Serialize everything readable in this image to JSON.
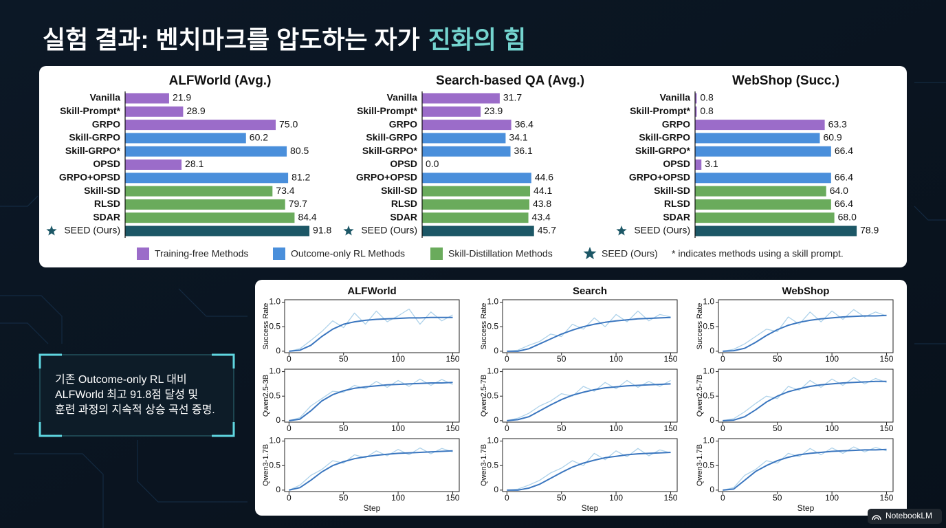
{
  "title": "실험 결과: 벤치마크를 압도하는 자가",
  "title_highlight": "진화의 힘",
  "legend": {
    "items": [
      {
        "label": "Training-free Methods",
        "color": "#9b6cc9"
      },
      {
        "label": "Outcome-only RL Methods",
        "color": "#4a8fdb"
      },
      {
        "label": "Skill-Distillation Methods",
        "color": "#6aab5c"
      },
      {
        "label": "SEED (Ours)",
        "color": "#1c5766"
      }
    ],
    "note": "* indicates methods using a skill prompt."
  },
  "callout": {
    "lines": [
      "기존 Outcome-only RL 대비",
      "ALFWorld 최고 91.8점 달성 및",
      "훈련 과정의 지속적 상승 곡선 증명."
    ]
  },
  "watermark": "NotebookLM",
  "chart_data": [
    {
      "type": "hbar",
      "title": "ALFWorld (Avg.)",
      "categories": [
        "Vanilla",
        "Skill-Prompt*",
        "GRPO",
        "Skill-GRPO",
        "Skill-GRPO*",
        "OPSD",
        "GRPO+OPSD",
        "Skill-SD",
        "RLSD",
        "SDAR",
        "SEED (Ours)"
      ],
      "values": [
        21.9,
        28.9,
        75,
        60.2,
        80.5,
        28.1,
        81.2,
        73.4,
        79.7,
        84.4,
        91.8
      ],
      "value_labels": [
        "21.9",
        "28.9",
        "75.0",
        "60.2",
        "80.5",
        "28.1",
        "81.2",
        "73.4",
        "79.7",
        "84.4",
        "91.8"
      ],
      "colors": [
        "#9b6cc9",
        "#9b6cc9",
        "#9b6cc9",
        "#4a8fdb",
        "#4a8fdb",
        "#9b6cc9",
        "#4a8fdb",
        "#6aab5c",
        "#6aab5c",
        "#6aab5c",
        "#1c5766"
      ],
      "xlim": [
        0,
        100
      ]
    },
    {
      "type": "hbar",
      "title": "Search-based QA (Avg.)",
      "categories": [
        "Vanilla",
        "Skill-Prompt*",
        "GRPO",
        "Skill-GRPO",
        "Skill-GRPO*",
        "OPSD",
        "GRPO+OPSD",
        "Skill-SD",
        "RLSD",
        "SDAR",
        "SEED (Ours)"
      ],
      "values": [
        31.7,
        23.9,
        36.4,
        34.1,
        36.1,
        0,
        44.6,
        44.1,
        43.8,
        43.4,
        45.7
      ],
      "value_labels": [
        "31.7",
        "23.9",
        "36.4",
        "34.1",
        "36.1",
        "0.0",
        "44.6",
        "44.1",
        "43.8",
        "43.4",
        "45.7"
      ],
      "colors": [
        "#9b6cc9",
        "#9b6cc9",
        "#9b6cc9",
        "#4a8fdb",
        "#4a8fdb",
        "#9b6cc9",
        "#4a8fdb",
        "#6aab5c",
        "#6aab5c",
        "#6aab5c",
        "#1c5766"
      ],
      "xlim": [
        0,
        82
      ]
    },
    {
      "type": "hbar",
      "title": "WebShop (Succ.)",
      "categories": [
        "Vanilla",
        "Skill-Prompt*",
        "GRPO",
        "Skill-GRPO",
        "Skill-GRPO*",
        "OPSD",
        "GRPO+OPSD",
        "Skill-SD",
        "RLSD",
        "SDAR",
        "SEED (Ours)"
      ],
      "values": [
        0.8,
        0.8,
        63.3,
        60.9,
        66.4,
        3.1,
        66.4,
        64,
        66.4,
        68,
        78.9
      ],
      "value_labels": [
        "0.8",
        "0.8",
        "63.3",
        "60.9",
        "66.4",
        "3.1",
        "66.4",
        "64.0",
        "66.4",
        "68.0",
        "78.9"
      ],
      "colors": [
        "#9b6cc9",
        "#9b6cc9",
        "#9b6cc9",
        "#4a8fdb",
        "#4a8fdb",
        "#9b6cc9",
        "#4a8fdb",
        "#6aab5c",
        "#6aab5c",
        "#6aab5c",
        "#1c5766"
      ],
      "xlim": [
        0,
        98
      ]
    },
    {
      "type": "line",
      "title": "ALFWorld",
      "ylabel": "Success Rate",
      "x": [
        0,
        10,
        20,
        30,
        40,
        50,
        60,
        70,
        80,
        90,
        100,
        110,
        120,
        130,
        140,
        150
      ],
      "series": [
        {
          "color": "#aed2ea",
          "values": [
            0,
            0.05,
            0.22,
            0.4,
            0.62,
            0.48,
            0.78,
            0.55,
            0.82,
            0.6,
            0.72,
            0.86,
            0.55,
            0.8,
            0.62,
            0.74
          ]
        },
        {
          "color": "#3a76bf",
          "values": [
            0,
            0.02,
            0.12,
            0.3,
            0.45,
            0.55,
            0.6,
            0.63,
            0.65,
            0.66,
            0.67,
            0.68,
            0.68,
            0.69,
            0.69,
            0.69
          ]
        }
      ],
      "xlim": [
        -4,
        156
      ],
      "ylim": [
        -0.03,
        1.05
      ],
      "xticks": [
        0,
        50,
        100,
        150
      ],
      "yticks": [
        0,
        0.5,
        {
          "value": 1,
          "label": "1.0"
        }
      ]
    },
    {
      "type": "line",
      "title": "Search",
      "ylabel": "Success Rate",
      "x": [
        0,
        10,
        20,
        30,
        40,
        50,
        60,
        70,
        80,
        90,
        100,
        110,
        120,
        130,
        140,
        150
      ],
      "series": [
        {
          "color": "#aed2ea",
          "values": [
            0,
            0.02,
            0.12,
            0.2,
            0.35,
            0.3,
            0.55,
            0.45,
            0.68,
            0.5,
            0.75,
            0.6,
            0.82,
            0.62,
            0.75,
            0.7
          ]
        },
        {
          "color": "#3a76bf",
          "values": [
            0,
            0,
            0.05,
            0.15,
            0.25,
            0.35,
            0.43,
            0.5,
            0.55,
            0.59,
            0.62,
            0.64,
            0.66,
            0.67,
            0.68,
            0.69
          ]
        }
      ],
      "xlim": [
        -4,
        156
      ],
      "ylim": [
        -0.03,
        1.05
      ],
      "xticks": [
        0,
        50,
        100,
        150
      ],
      "yticks": [
        0,
        0.5,
        {
          "value": 1,
          "label": "1.0"
        }
      ]
    },
    {
      "type": "line",
      "title": "WebShop",
      "ylabel": "Success Rate",
      "x": [
        0,
        10,
        20,
        30,
        40,
        50,
        60,
        70,
        80,
        90,
        100,
        110,
        120,
        130,
        140,
        150
      ],
      "series": [
        {
          "color": "#aed2ea",
          "values": [
            0,
            0.04,
            0.15,
            0.3,
            0.45,
            0.4,
            0.7,
            0.55,
            0.8,
            0.6,
            0.82,
            0.65,
            0.85,
            0.7,
            0.8,
            0.72
          ]
        },
        {
          "color": "#3a76bf",
          "values": [
            0,
            0.01,
            0.06,
            0.18,
            0.32,
            0.44,
            0.53,
            0.59,
            0.63,
            0.66,
            0.68,
            0.7,
            0.71,
            0.72,
            0.72,
            0.73
          ]
        }
      ],
      "xlim": [
        -4,
        156
      ],
      "ylim": [
        -0.03,
        1.05
      ],
      "xticks": [
        0,
        50,
        100,
        150
      ],
      "yticks": [
        0,
        0.5,
        {
          "value": 1,
          "label": "1.0"
        }
      ]
    },
    {
      "type": "line",
      "ylabel": "Qwen2.5-3B",
      "x": [
        0,
        10,
        20,
        30,
        40,
        50,
        60,
        70,
        80,
        90,
        100,
        110,
        120,
        130,
        140,
        150
      ],
      "series": [
        {
          "color": "#aed2ea",
          "values": [
            0,
            0.06,
            0.3,
            0.45,
            0.6,
            0.58,
            0.72,
            0.65,
            0.8,
            0.68,
            0.82,
            0.7,
            0.85,
            0.72,
            0.84,
            0.74
          ]
        },
        {
          "color": "#3a76bf",
          "values": [
            0,
            0.03,
            0.2,
            0.4,
            0.53,
            0.61,
            0.66,
            0.69,
            0.71,
            0.73,
            0.74,
            0.75,
            0.76,
            0.77,
            0.77,
            0.78
          ]
        }
      ],
      "xlim": [
        -4,
        156
      ],
      "ylim": [
        -0.03,
        1.05
      ],
      "xticks": [
        0,
        50,
        100,
        150
      ],
      "yticks": [
        0,
        0.5,
        {
          "value": 1,
          "label": "1.0"
        }
      ]
    },
    {
      "type": "line",
      "ylabel": "Qwen2.5-7B",
      "x": [
        0,
        10,
        20,
        30,
        40,
        50,
        60,
        70,
        80,
        90,
        100,
        110,
        120,
        130,
        140,
        150
      ],
      "series": [
        {
          "color": "#aed2ea",
          "values": [
            0,
            0.05,
            0.15,
            0.3,
            0.4,
            0.55,
            0.5,
            0.7,
            0.6,
            0.78,
            0.65,
            0.82,
            0.68,
            0.8,
            0.7,
            0.82
          ]
        },
        {
          "color": "#3a76bf",
          "values": [
            0,
            0.02,
            0.08,
            0.2,
            0.32,
            0.43,
            0.52,
            0.58,
            0.63,
            0.67,
            0.69,
            0.71,
            0.72,
            0.73,
            0.74,
            0.75
          ]
        }
      ],
      "xlim": [
        -4,
        156
      ],
      "ylim": [
        -0.03,
        1.05
      ],
      "xticks": [
        0,
        50,
        100,
        150
      ],
      "yticks": [
        0,
        0.5,
        {
          "value": 1,
          "label": "1.0"
        }
      ]
    },
    {
      "type": "line",
      "ylabel": "Qwen2.5-7B",
      "x": [
        0,
        10,
        20,
        30,
        40,
        50,
        60,
        70,
        80,
        90,
        100,
        110,
        120,
        130,
        140,
        150
      ],
      "series": [
        {
          "color": "#aed2ea",
          "values": [
            0,
            0.04,
            0.18,
            0.35,
            0.5,
            0.45,
            0.7,
            0.62,
            0.82,
            0.68,
            0.85,
            0.72,
            0.88,
            0.75,
            0.86,
            0.78
          ]
        },
        {
          "color": "#3a76bf",
          "values": [
            0,
            0.01,
            0.08,
            0.22,
            0.38,
            0.5,
            0.59,
            0.65,
            0.7,
            0.73,
            0.75,
            0.77,
            0.78,
            0.79,
            0.8,
            0.8
          ]
        }
      ],
      "xlim": [
        -4,
        156
      ],
      "ylim": [
        -0.03,
        1.05
      ],
      "xticks": [
        0,
        50,
        100,
        150
      ],
      "yticks": [
        0,
        0.5,
        {
          "value": 1,
          "label": "1.0"
        }
      ]
    },
    {
      "type": "line",
      "ylabel": "Qwen3-1.7B",
      "xlabel": "Step",
      "x": [
        0,
        10,
        20,
        30,
        40,
        50,
        60,
        70,
        80,
        90,
        100,
        110,
        120,
        130,
        140,
        150
      ],
      "series": [
        {
          "color": "#aed2ea",
          "values": [
            0,
            0.1,
            0.3,
            0.42,
            0.6,
            0.55,
            0.72,
            0.66,
            0.8,
            0.7,
            0.83,
            0.72,
            0.86,
            0.74,
            0.85,
            0.78
          ]
        },
        {
          "color": "#3a76bf",
          "values": [
            0,
            0.05,
            0.2,
            0.37,
            0.5,
            0.58,
            0.64,
            0.68,
            0.71,
            0.73,
            0.75,
            0.76,
            0.77,
            0.78,
            0.79,
            0.8
          ]
        }
      ],
      "xlim": [
        -4,
        156
      ],
      "ylim": [
        -0.03,
        1.05
      ],
      "xticks": [
        0,
        50,
        100,
        150
      ],
      "yticks": [
        0,
        0.5,
        {
          "value": 1,
          "label": "1.0"
        }
      ]
    },
    {
      "type": "line",
      "ylabel": "Qwen3-1.7B",
      "xlabel": "Step",
      "x": [
        0,
        10,
        20,
        30,
        40,
        50,
        60,
        70,
        80,
        90,
        100,
        110,
        120,
        130,
        140,
        150
      ],
      "series": [
        {
          "color": "#aed2ea",
          "values": [
            0,
            0.02,
            0.1,
            0.2,
            0.35,
            0.45,
            0.6,
            0.5,
            0.75,
            0.62,
            0.8,
            0.68,
            0.85,
            0.7,
            0.82,
            0.76
          ]
        },
        {
          "color": "#3a76bf",
          "values": [
            0,
            0,
            0.04,
            0.12,
            0.24,
            0.36,
            0.47,
            0.55,
            0.61,
            0.66,
            0.69,
            0.72,
            0.74,
            0.75,
            0.76,
            0.77
          ]
        }
      ],
      "xlim": [
        -4,
        156
      ],
      "ylim": [
        -0.03,
        1.05
      ],
      "xticks": [
        0,
        50,
        100,
        150
      ],
      "yticks": [
        0,
        0.5,
        {
          "value": 1,
          "label": "1.0"
        }
      ]
    },
    {
      "type": "line",
      "ylabel": "Qwen3-1.7B",
      "xlabel": "Step",
      "x": [
        0,
        10,
        20,
        30,
        40,
        50,
        60,
        70,
        80,
        90,
        100,
        110,
        120,
        130,
        140,
        150
      ],
      "series": [
        {
          "color": "#aed2ea",
          "values": [
            0,
            0.05,
            0.3,
            0.42,
            0.6,
            0.55,
            0.75,
            0.68,
            0.85,
            0.72,
            0.86,
            0.75,
            0.88,
            0.78,
            0.87,
            0.8
          ]
        },
        {
          "color": "#3a76bf",
          "values": [
            0,
            0.02,
            0.2,
            0.38,
            0.5,
            0.6,
            0.67,
            0.72,
            0.75,
            0.77,
            0.79,
            0.8,
            0.81,
            0.82,
            0.82,
            0.83
          ]
        }
      ],
      "xlim": [
        -4,
        156
      ],
      "ylim": [
        -0.03,
        1.05
      ],
      "xticks": [
        0,
        50,
        100,
        150
      ],
      "yticks": [
        0,
        0.5,
        {
          "value": 1,
          "label": "1.0"
        }
      ]
    }
  ]
}
